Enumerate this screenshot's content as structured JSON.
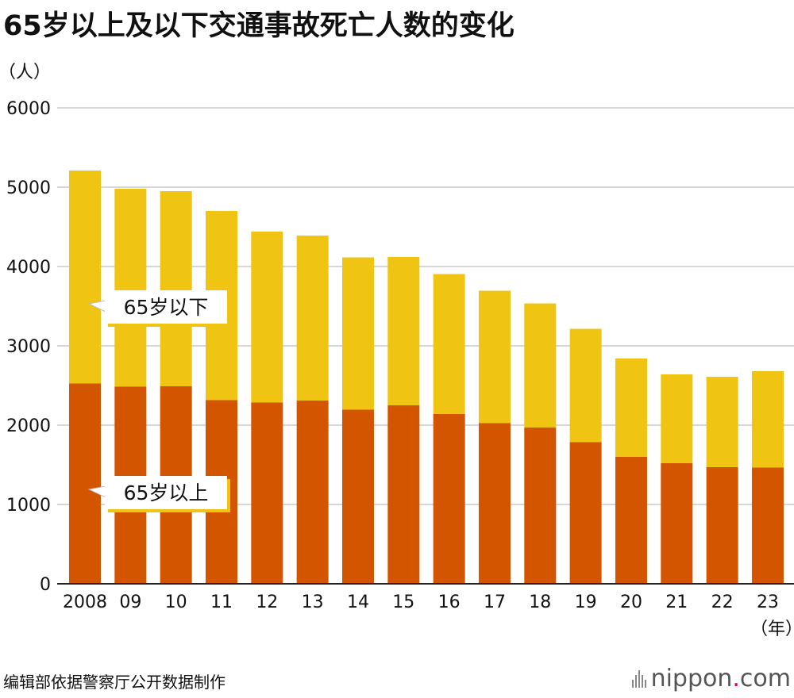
{
  "page": {
    "title": "65岁以上及以下交通事故死亡人数的变化",
    "source": "编辑部依据警察厅公开数据制作",
    "brand_name": "nippon",
    "brand_dot": ".",
    "brand_tld": "com"
  },
  "chart_data": {
    "type": "bar",
    "stacked": true,
    "title": "65岁以上及以下交通事故死亡人数的变化",
    "y_unit": "（人）",
    "x_unit": "（年）",
    "ylim": [
      0,
      6000
    ],
    "yticks": [
      0,
      1000,
      2000,
      3000,
      4000,
      5000,
      6000
    ],
    "grid": true,
    "categories": [
      "2008",
      "09",
      "10",
      "11",
      "12",
      "13",
      "14",
      "15",
      "16",
      "17",
      "18",
      "19",
      "20",
      "21",
      "22",
      "23"
    ],
    "series": [
      {
        "name": "65岁以上",
        "color": "#d45500",
        "values": [
          2525,
          2485,
          2490,
          2315,
          2285,
          2310,
          2195,
          2250,
          2140,
          2025,
          1970,
          1785,
          1600,
          1520,
          1470,
          1465
        ]
      },
      {
        "name": "65岁以下",
        "color": "#f0c413",
        "values": [
          2685,
          2495,
          2460,
          2385,
          2155,
          2080,
          1920,
          1870,
          1765,
          1670,
          1565,
          1430,
          1240,
          1120,
          1140,
          1215
        ]
      }
    ],
    "callouts": [
      {
        "text": "65岁以下",
        "series": "65岁以下"
      },
      {
        "text": "65岁以上",
        "series": "65岁以上"
      }
    ],
    "colors": {
      "grid": "#c8c8c8",
      "axis": "#222222",
      "callout_border": "#f0c413",
      "callout_bg": "#ffffff"
    }
  }
}
